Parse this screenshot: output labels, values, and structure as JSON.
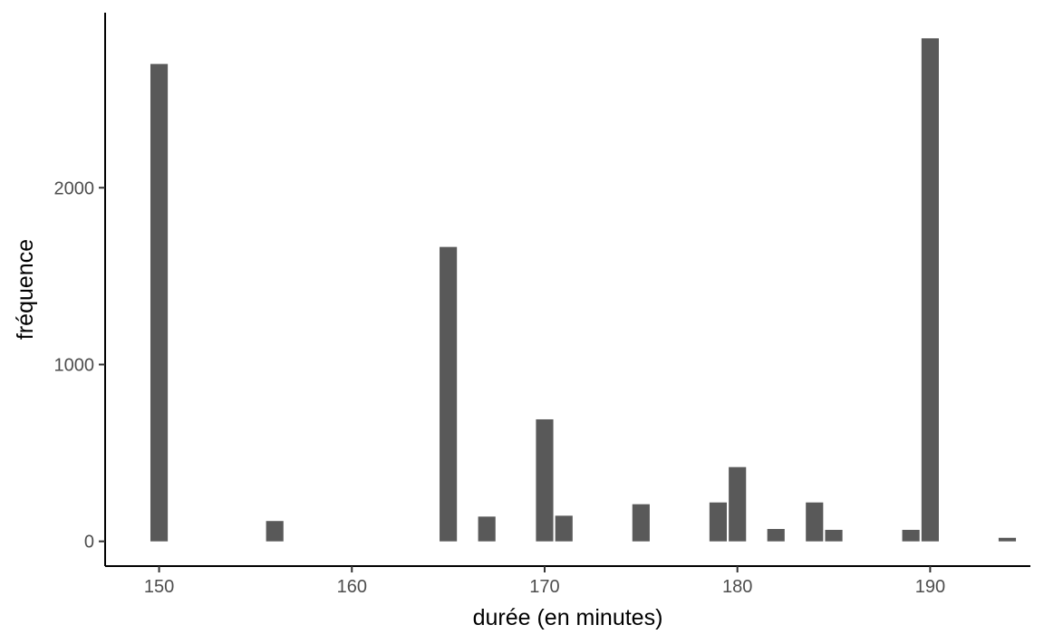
{
  "chart_data": {
    "type": "bar",
    "title": "",
    "xlabel": "durée (en minutes)",
    "ylabel": "fréquence",
    "x": [
      150,
      156,
      165,
      167,
      170,
      171,
      175,
      179,
      180,
      182,
      184,
      185,
      189,
      190,
      194
    ],
    "values": [
      2700,
      115,
      1665,
      140,
      690,
      145,
      210,
      220,
      420,
      70,
      220,
      65,
      65,
      2845,
      20
    ],
    "xlim": [
      147.2,
      195.2
    ],
    "ylim": [
      -140,
      2990
    ],
    "xticks": [
      150,
      160,
      170,
      180,
      190
    ],
    "yticks": [
      0,
      1000,
      2000
    ],
    "xtick_labels": [
      "150",
      "160",
      "170",
      "180",
      "190"
    ],
    "ytick_labels": [
      "0",
      "1000",
      "2000"
    ],
    "bar_color": "#595959",
    "axis_color": "#000000",
    "grid": false
  }
}
